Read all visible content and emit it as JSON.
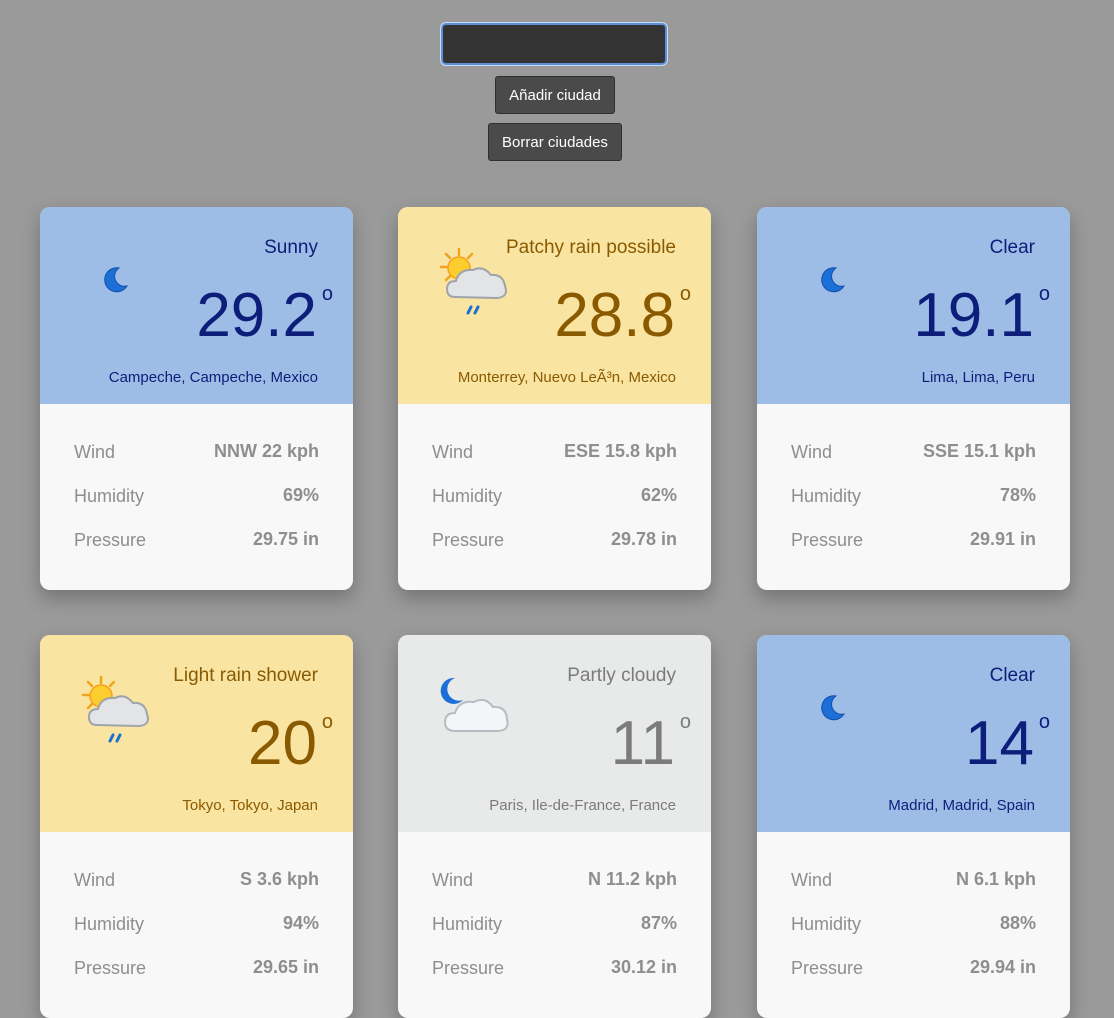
{
  "controls": {
    "input_value": "",
    "add_button_label": "Añadir ciudad",
    "clear_button_label": "Borrar ciudades"
  },
  "labels": {
    "wind": "Wind",
    "humidity": "Humidity",
    "pressure": "Pressure",
    "degree_symbol": "o"
  },
  "colors": {
    "night_blue_bg": "#9dbde6",
    "rain_yellow_bg": "#f9e4a2",
    "cloudy_grey_bg": "#e8e9e9",
    "page_bg": "#9a9a9a"
  },
  "cards": [
    {
      "condition": "Sunny",
      "temperature": "29.2",
      "location": "Campeche, Campeche, Mexico",
      "icon": "moon-icon",
      "theme": "blue",
      "wind": "NNW 22 kph",
      "humidity": "69%",
      "pressure": "29.75 in"
    },
    {
      "condition": "Patchy rain possible",
      "temperature": "28.8",
      "location": "Monterrey, Nuevo LeÃ³n, Mexico",
      "icon": "sun-cloud-rain-icon",
      "theme": "yellow",
      "wind": "ESE 15.8 kph",
      "humidity": "62%",
      "pressure": "29.78 in"
    },
    {
      "condition": "Clear",
      "temperature": "19.1",
      "location": "Lima, Lima, Peru",
      "icon": "moon-icon",
      "theme": "blue",
      "wind": "SSE 15.1 kph",
      "humidity": "78%",
      "pressure": "29.91 in"
    },
    {
      "condition": "Light rain shower",
      "temperature": "20",
      "location": "Tokyo, Tokyo, Japan",
      "icon": "sun-cloud-rain-icon",
      "theme": "yellow",
      "wind": "S 3.6 kph",
      "humidity": "94%",
      "pressure": "29.65 in"
    },
    {
      "condition": "Partly cloudy",
      "temperature": "11",
      "location": "Paris, Ile-de-France, France",
      "icon": "moon-cloud-icon",
      "theme": "grey",
      "wind": "N 11.2 kph",
      "humidity": "87%",
      "pressure": "30.12 in"
    },
    {
      "condition": "Clear",
      "temperature": "14",
      "location": "Madrid, Madrid, Spain",
      "icon": "moon-icon",
      "theme": "blue",
      "wind": "N 6.1 kph",
      "humidity": "88%",
      "pressure": "29.94 in"
    }
  ]
}
